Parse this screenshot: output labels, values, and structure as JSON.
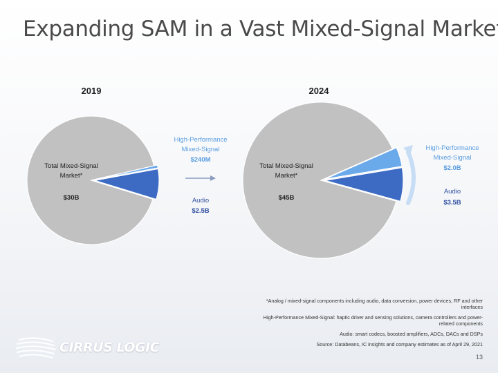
{
  "slide": {
    "title": "Expanding SAM in a Vast Mixed-Signal Market",
    "page_number": "13",
    "logo_text": "CIRRUS LOGIC"
  },
  "colors": {
    "total_market": "#c1c1c1",
    "hpms": "#6aa9ea",
    "audio": "#3d6bc4",
    "hpms_label": "#5a9de0",
    "audio_label": "#2f4fa0",
    "arrow": "#8a9bbf"
  },
  "chart_data": [
    {
      "type": "pie",
      "title": "2019",
      "slices": [
        {
          "name": "Total Mixed-Signal Market*",
          "value": 30000,
          "label": "$30B"
        },
        {
          "name": "High-Performance Mixed-Signal",
          "value": 240,
          "label": "$240M"
        },
        {
          "name": "Audio",
          "value": 2500,
          "label": "$2.5B"
        }
      ]
    },
    {
      "type": "pie",
      "title": "2024",
      "slices": [
        {
          "name": "Total Mixed-Signal Market*",
          "value": 45000,
          "label": "$45B"
        },
        {
          "name": "High-Performance Mixed-Signal",
          "value": 2000,
          "label": "$2.0B"
        },
        {
          "name": "Audio",
          "value": 3500,
          "label": "$3.5B"
        }
      ]
    }
  ],
  "labels": {
    "total_line1": "Total Mixed-Signal",
    "total_line2": "Market*",
    "hpms_line1": "High-Performance",
    "hpms_line2": "Mixed-Signal",
    "audio": "Audio"
  },
  "footnotes": [
    "*Analog / mixed-signal components including audio, data conversion, power devices, RF and other interfaces",
    "High-Performance Mixed-Signal: haptic driver and sensing solutions, camera controllers and power-related components",
    "Audio: smart codecs, boosted amplifiers, ADCs, DACs and DSPs",
    "Source: Databeans, IC insights and company estimates as of April 29, 2021"
  ]
}
